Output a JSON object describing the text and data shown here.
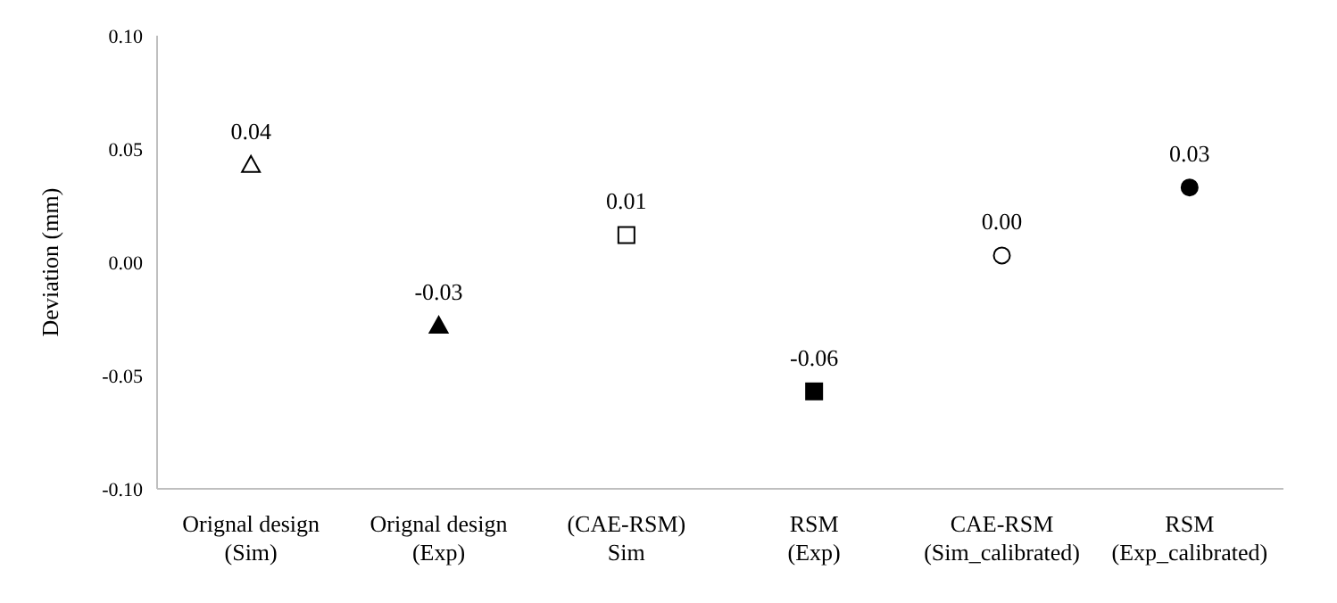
{
  "chart_data": {
    "type": "scatter",
    "ylabel": "Deviation (mm)",
    "categories": [
      "Orignal design\n(Sim)",
      "Orignal design\n(Exp)",
      "(CAE-RSM)\nSim",
      "RSM\n(Exp)",
      "CAE-RSM\n(Sim_calibrated)",
      "RSM\n(Exp_calibrated)"
    ],
    "ylim": [
      -0.1,
      0.1
    ],
    "yticks": [
      {
        "value": -0.1,
        "label": "-0.10"
      },
      {
        "value": -0.05,
        "label": "-0.05"
      },
      {
        "value": 0,
        "label": "0.00"
      },
      {
        "value": 0.05,
        "label": "0.05"
      },
      {
        "value": 0.1,
        "label": "0.10"
      }
    ],
    "grid": false,
    "legend": false,
    "series": [
      {
        "marker": "triangle",
        "color": "#ffffff",
        "values": [
          0.043,
          null,
          null,
          null,
          null,
          null
        ],
        "value_labels": [
          "0.04",
          null,
          null,
          null,
          null,
          null
        ]
      },
      {
        "marker": "triangle",
        "color": "#000000",
        "values": [
          null,
          -0.028,
          null,
          null,
          null,
          null
        ],
        "value_labels": [
          null,
          "-0.03",
          null,
          null,
          null,
          null
        ]
      },
      {
        "marker": "square",
        "color": "#ffffff",
        "values": [
          null,
          null,
          0.012,
          null,
          null,
          null
        ],
        "value_labels": [
          null,
          null,
          "0.01",
          null,
          null,
          null
        ]
      },
      {
        "marker": "square",
        "color": "#000000",
        "values": [
          null,
          null,
          null,
          -0.057,
          null,
          null
        ],
        "value_labels": [
          null,
          null,
          null,
          "-0.06",
          null,
          null
        ]
      },
      {
        "marker": "circle",
        "color": "#ffffff",
        "values": [
          null,
          null,
          null,
          null,
          0.003,
          null
        ],
        "value_labels": [
          null,
          null,
          null,
          null,
          "0.00",
          null
        ]
      },
      {
        "marker": "circle",
        "color": "#000000",
        "values": [
          null,
          null,
          null,
          null,
          null,
          0.033
        ],
        "value_labels": [
          null,
          null,
          null,
          null,
          null,
          "0.03"
        ]
      }
    ]
  }
}
